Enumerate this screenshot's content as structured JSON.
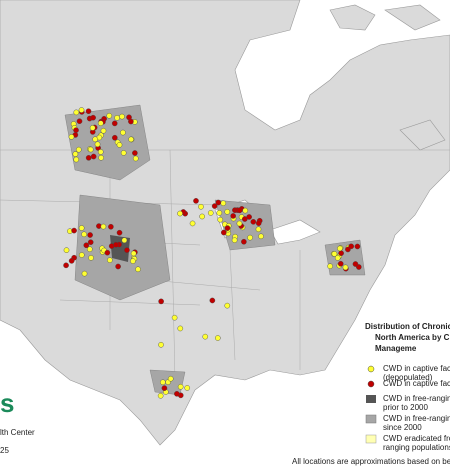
{
  "legend": {
    "title": [
      "Distribution of Chronic",
      "North America by C",
      "Manageme"
    ],
    "items": [
      {
        "lines": [
          "CWD in captive facili",
          "(depopulated)"
        ]
      },
      {
        "lines": [
          "CWD in captive facili"
        ]
      },
      {
        "lines": [
          "CWD in free-ranging",
          "prior to 2000"
        ]
      },
      {
        "lines": [
          "CWD in free-ranging",
          "since 2000"
        ]
      },
      {
        "lines": [
          "CWD eradicated fron",
          "ranging populations"
        ]
      }
    ]
  },
  "footnote": "All locations are approximations based on best",
  "credit": [
    "lth Center",
    "25"
  ]
}
